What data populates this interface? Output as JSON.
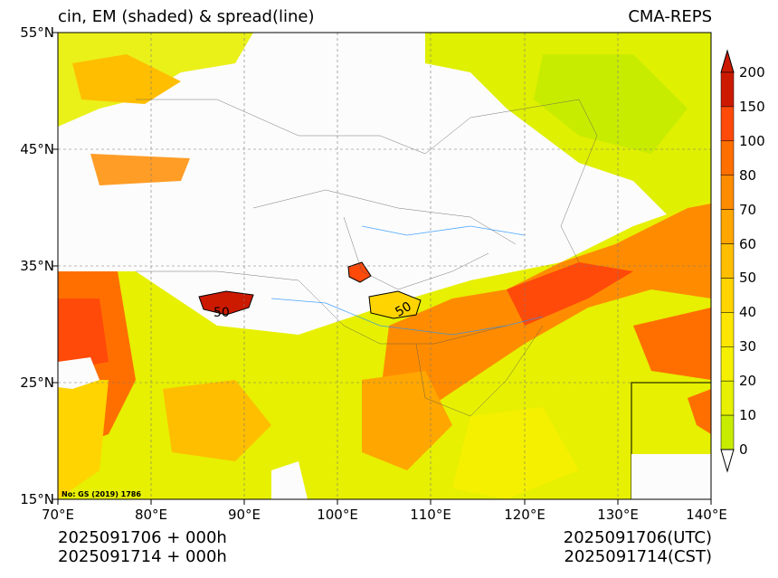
{
  "title": {
    "left": "cin, EM (shaded) & spread(line)",
    "right": "CMA-REPS"
  },
  "axes": {
    "y_ticks": [
      "55°N",
      "45°N",
      "35°N",
      "25°N",
      "15°N"
    ],
    "x_ticks": [
      "70°E",
      "80°E",
      "90°E",
      "100°E",
      "110°E",
      "120°E",
      "130°E",
      "140°E"
    ]
  },
  "colorbar": {
    "ticks": [
      "200",
      "150",
      "100",
      "80",
      "70",
      "60",
      "50",
      "40",
      "30",
      "20",
      "10",
      "0"
    ],
    "colors": [
      "#cc1a00",
      "#ff4a0a",
      "#ff6f00",
      "#ff8c00",
      "#ffa600",
      "#ffbe00",
      "#ffd400",
      "#ffe600",
      "#f5f000",
      "#e6f000",
      "#c8ec00"
    ]
  },
  "contour_labels": [
    "50",
    "50"
  ],
  "note": "No: GS (2019) 1786",
  "footer": {
    "init_line": "2025091706  +  000h",
    "valid_line": "2025091714  +  000h",
    "utc": "2025091706(UTC)",
    "cst": "2025091714(CST)"
  }
}
